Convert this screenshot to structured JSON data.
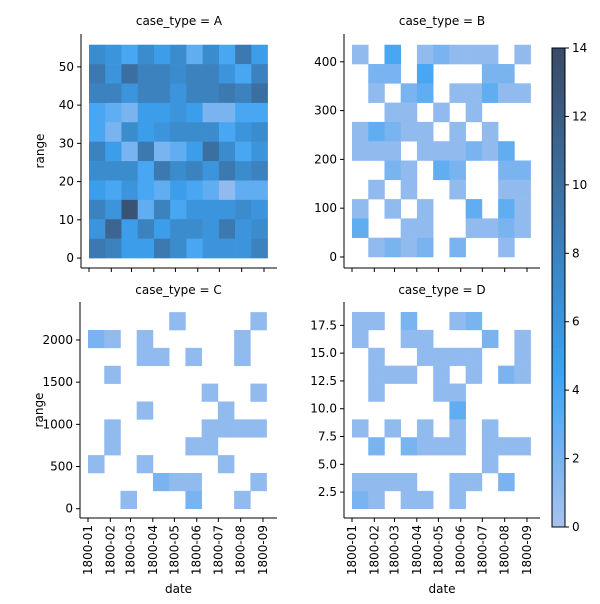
{
  "chart_data": {
    "type": "heatmap",
    "xlabel": "date",
    "ylabel": "range",
    "x_ticks": [
      "1800-01",
      "1800-02",
      "1800-03",
      "1800-04",
      "1800-05",
      "1800-06",
      "1800-07",
      "1800-08",
      "1800-09"
    ],
    "x_bin_range": [
      "1800-01-01",
      "1800-09-06"
    ],
    "colorbar": {
      "min": 0,
      "max": 14,
      "ticks": [
        0,
        2,
        4,
        6,
        8,
        10,
        12,
        14
      ]
    },
    "colors": {
      "low": "#a9c2ee",
      "mid": "#3ca3f2",
      "high": "#3a4a66"
    },
    "facets": [
      {
        "title": "case_type = A",
        "ylim": [
          -2.6,
          58.6
        ],
        "y_ticks": [
          0,
          10,
          20,
          30,
          40,
          50
        ],
        "y_bin_range": [
          0,
          55.8
        ],
        "counts_top_to_bottom": [
          [
            7,
            6,
            4,
            7,
            5,
            7,
            3,
            7,
            4,
            9,
            5
          ],
          [
            9,
            6,
            10,
            8,
            8,
            7,
            8,
            8,
            6,
            4,
            8
          ],
          [
            8,
            8,
            6,
            8,
            8,
            6,
            8,
            8,
            9,
            8,
            10
          ],
          [
            4,
            3,
            2,
            5,
            5,
            6,
            5,
            2,
            2,
            4,
            4
          ],
          [
            4,
            2,
            7,
            5,
            6,
            7,
            7,
            7,
            4,
            6,
            7
          ],
          [
            8,
            5,
            2,
            9,
            2,
            3,
            5,
            10,
            7,
            4,
            6
          ],
          [
            7,
            7,
            7,
            4,
            9,
            7,
            8,
            6,
            9,
            7,
            8
          ],
          [
            5,
            4,
            6,
            4,
            3,
            5,
            4,
            3,
            1,
            3,
            3
          ],
          [
            8,
            6,
            13,
            3,
            8,
            4,
            6,
            6,
            6,
            7,
            6
          ],
          [
            6,
            11,
            5,
            8,
            5,
            7,
            7,
            6,
            9,
            6,
            7
          ],
          [
            9,
            8,
            5,
            5,
            9,
            7,
            4,
            6,
            6,
            6,
            8
          ]
        ]
      },
      {
        "title": "case_type = B",
        "ylim": [
          -22.6,
          457
        ],
        "y_ticks": [
          0,
          100,
          200,
          300,
          400
        ],
        "y_bin_range": [
          0,
          435
        ],
        "counts_top_to_bottom": [
          [
            1,
            0,
            4,
            0,
            1,
            2,
            1,
            1,
            1,
            0,
            1
          ],
          [
            0,
            2,
            2,
            0,
            4,
            0,
            0,
            0,
            2,
            2,
            0
          ],
          [
            0,
            1,
            0,
            2,
            3,
            0,
            1,
            1,
            3,
            1,
            1
          ],
          [
            0,
            0,
            1,
            1,
            0,
            1,
            0,
            1,
            0,
            0,
            0
          ],
          [
            1,
            3,
            2,
            1,
            1,
            0,
            1,
            0,
            1,
            0,
            0
          ],
          [
            1,
            1,
            1,
            0,
            1,
            1,
            1,
            2,
            1,
            3,
            0
          ],
          [
            0,
            0,
            2,
            1,
            0,
            3,
            2,
            0,
            0,
            2,
            2
          ],
          [
            0,
            1,
            0,
            1,
            0,
            0,
            1,
            0,
            0,
            1,
            1
          ],
          [
            1,
            0,
            1,
            0,
            1,
            0,
            0,
            3,
            0,
            3,
            1
          ],
          [
            3,
            0,
            0,
            1,
            1,
            0,
            0,
            1,
            1,
            2,
            1
          ],
          [
            0,
            1,
            2,
            1,
            2,
            0,
            2,
            0,
            0,
            1,
            0
          ]
        ]
      },
      {
        "title": "case_type = C",
        "ylim": [
          -110,
          2450
        ],
        "y_ticks": [
          0,
          500,
          1000,
          1500,
          2000
        ],
        "y_bin_range": [
          0,
          2330
        ],
        "counts_top_to_bottom": [
          [
            0,
            0,
            0,
            0,
            0,
            1,
            0,
            0,
            0,
            0,
            1
          ],
          [
            2,
            1,
            0,
            1,
            0,
            0,
            0,
            0,
            0,
            1,
            0
          ],
          [
            0,
            0,
            0,
            1,
            1,
            0,
            1,
            0,
            0,
            1,
            0
          ],
          [
            0,
            1,
            0,
            0,
            0,
            0,
            0,
            0,
            0,
            0,
            0
          ],
          [
            0,
            0,
            0,
            0,
            0,
            0,
            0,
            1,
            0,
            0,
            1
          ],
          [
            0,
            0,
            0,
            1,
            0,
            0,
            0,
            0,
            1,
            0,
            0
          ],
          [
            0,
            1,
            0,
            0,
            0,
            0,
            0,
            1,
            1,
            1,
            1
          ],
          [
            0,
            1,
            0,
            0,
            0,
            0,
            1,
            1,
            0,
            0,
            0
          ],
          [
            1,
            0,
            0,
            1,
            0,
            0,
            0,
            0,
            1,
            0,
            0
          ],
          [
            0,
            0,
            0,
            0,
            2,
            1,
            1,
            0,
            0,
            0,
            1
          ],
          [
            0,
            0,
            1,
            0,
            0,
            0,
            2,
            0,
            0,
            1,
            0
          ]
        ]
      },
      {
        "title": "case_type = D",
        "ylim": [
          0.17,
          19.6
        ],
        "y_ticks": [
          2.5,
          5.0,
          7.5,
          10.0,
          12.5,
          15.0,
          17.5
        ],
        "y_bin_range": [
          1.0,
          18.7
        ],
        "counts_top_to_bottom": [
          [
            1,
            1,
            0,
            2,
            0,
            0,
            1,
            2,
            0,
            0,
            0
          ],
          [
            1,
            0,
            0,
            1,
            1,
            0,
            0,
            0,
            2,
            0,
            1
          ],
          [
            0,
            1,
            0,
            0,
            1,
            1,
            1,
            1,
            0,
            0,
            1
          ],
          [
            0,
            1,
            1,
            1,
            0,
            1,
            0,
            1,
            0,
            2,
            1
          ],
          [
            0,
            1,
            0,
            0,
            0,
            1,
            1,
            0,
            0,
            0,
            0
          ],
          [
            0,
            0,
            0,
            0,
            0,
            0,
            3,
            0,
            0,
            0,
            0
          ],
          [
            1,
            0,
            1,
            0,
            1,
            0,
            1,
            0,
            1,
            0,
            0
          ],
          [
            0,
            2,
            0,
            2,
            1,
            1,
            1,
            0,
            1,
            1,
            1
          ],
          [
            0,
            0,
            0,
            0,
            0,
            0,
            0,
            0,
            1,
            0,
            0
          ],
          [
            1,
            1,
            1,
            1,
            0,
            0,
            1,
            1,
            0,
            2,
            0
          ],
          [
            2,
            1,
            0,
            1,
            1,
            0,
            1,
            0,
            0,
            0,
            0
          ]
        ]
      }
    ]
  }
}
